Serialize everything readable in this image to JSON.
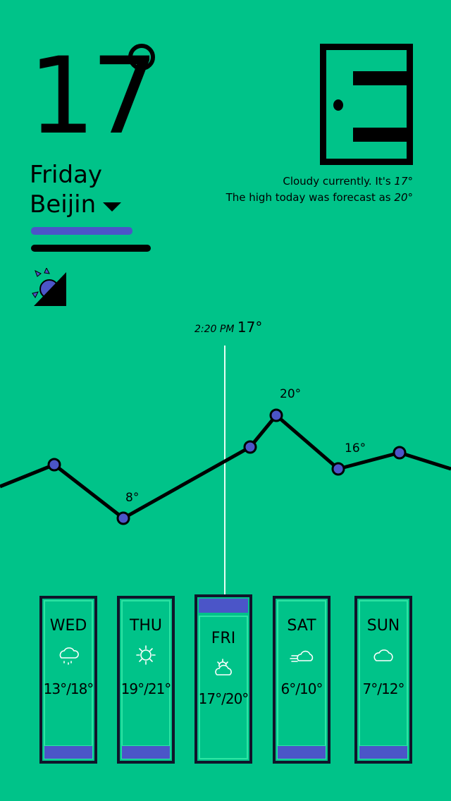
{
  "current": {
    "temp": "17",
    "day": "Friday",
    "city": "Beijin"
  },
  "summary": {
    "line1": "Cloudy currently. It's ",
    "line1_temp": "17°",
    "line2": "The high today was forecast as ",
    "line2_temp": "20°"
  },
  "now": {
    "time": "2:20 PM",
    "temp": "17°"
  },
  "chart_labels": {
    "low": "8°",
    "high": "20°",
    "mid": "16°"
  },
  "forecast": [
    {
      "day": "WED",
      "icon": "cloud-rain-icon",
      "temps": "13°/18°"
    },
    {
      "day": "THU",
      "icon": "sun-icon",
      "temps": "19°/21°"
    },
    {
      "day": "FRI",
      "icon": "partly-cloudy-icon",
      "temps": "17°/20°",
      "selected": true
    },
    {
      "day": "SAT",
      "icon": "cloud-wind-icon",
      "temps": "6°/10°"
    },
    {
      "day": "SUN",
      "icon": "cloud-icon",
      "temps": "7°/12°"
    }
  ],
  "colors": {
    "background": "#00c389",
    "accent": "#4b55c8"
  }
}
